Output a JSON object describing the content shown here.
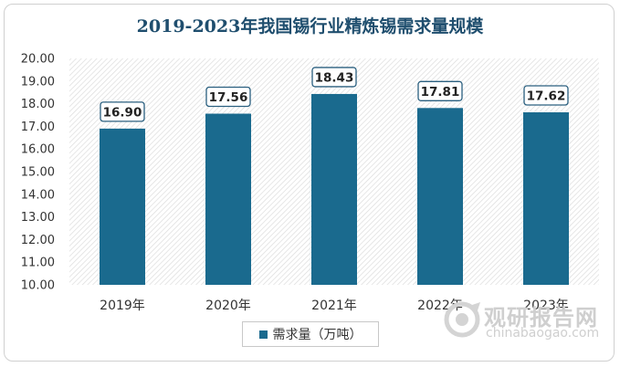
{
  "chart_data": {
    "type": "bar",
    "title": "2019-2023年我国锡行业精炼锡需求量规模",
    "categories": [
      "2019年",
      "2020年",
      "2021年",
      "2022年",
      "2023年"
    ],
    "series": [
      {
        "name": "需求量（万吨）",
        "values": [
          16.9,
          17.56,
          18.43,
          17.81,
          17.62
        ],
        "color": "#1a6a8e"
      }
    ],
    "data_labels": [
      "16.90",
      "17.56",
      "18.43",
      "17.81",
      "17.62"
    ],
    "y_ticks": [
      "10.00",
      "11.00",
      "12.00",
      "13.00",
      "14.00",
      "15.00",
      "16.00",
      "17.00",
      "18.00",
      "19.00",
      "20.00"
    ],
    "ylim": [
      10,
      20
    ],
    "legend_position": "bottom"
  },
  "watermark": {
    "cn": "观研报告网",
    "en": "chinabaogao.com"
  }
}
